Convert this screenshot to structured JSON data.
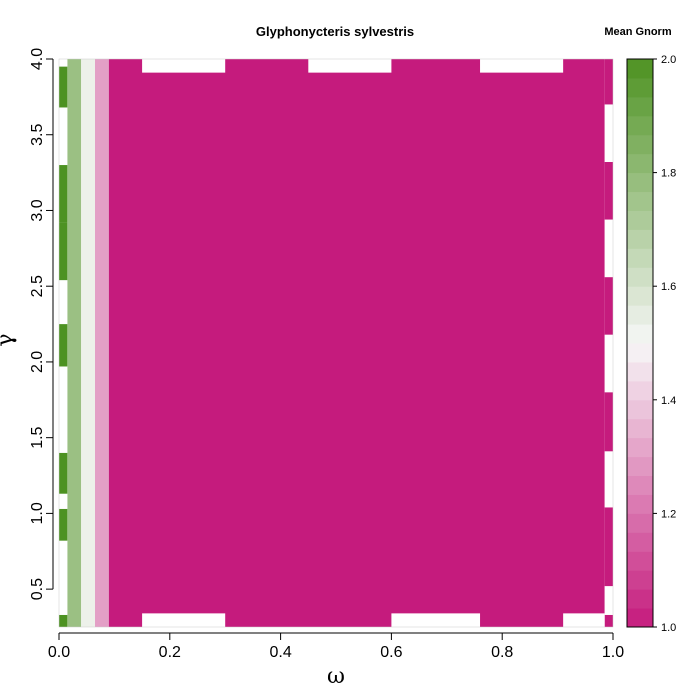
{
  "chart_data": {
    "type": "heatmap",
    "title": "Glyphonycteris sylvestris",
    "legend_title": "Mean Gnorm",
    "xlabel": "ω",
    "ylabel": "γ",
    "xlim": [
      0.0,
      1.0
    ],
    "ylim": [
      0.25,
      4.0
    ],
    "x_ticks": [
      "0.0",
      "0.2",
      "0.4",
      "0.6",
      "0.8",
      "1.0"
    ],
    "y_ticks": [
      "0.5",
      "1.0",
      "1.5",
      "2.0",
      "2.5",
      "3.0",
      "3.5",
      "4.0"
    ],
    "colorbar": {
      "range": [
        1.0,
        2.0
      ],
      "ticks": [
        "1.0",
        "1.2",
        "1.4",
        "1.6",
        "1.8",
        "2.0"
      ],
      "low_color": "#c51b7d",
      "mid_color": "#f7f7f7",
      "high_color": "#4d9221"
    },
    "columns": [
      {
        "x_from": 0.0,
        "x_to": 0.015,
        "value": null
      },
      {
        "x_from": 0.015,
        "x_to": 0.04,
        "value": 1.77
      },
      {
        "x_from": 0.04,
        "x_to": 0.065,
        "value": 1.53
      },
      {
        "x_from": 0.065,
        "x_to": 0.09,
        "value": 1.3
      },
      {
        "x_from": 0.09,
        "x_to": 0.985,
        "value": 1.0
      },
      {
        "x_from": 0.985,
        "x_to": 1.0,
        "value": null
      }
    ],
    "first_column_bands": [
      {
        "y_from": 0.25,
        "y_to": 0.33,
        "value": 2.0
      },
      {
        "y_from": 0.33,
        "y_to": 0.82,
        "value": null
      },
      {
        "y_from": 0.82,
        "y_to": 1.03,
        "value": 2.0
      },
      {
        "y_from": 1.03,
        "y_to": 1.13,
        "value": null
      },
      {
        "y_from": 1.13,
        "y_to": 1.4,
        "value": 2.0
      },
      {
        "y_from": 1.4,
        "y_to": 1.97,
        "value": null
      },
      {
        "y_from": 1.97,
        "y_to": 2.25,
        "value": 2.0
      },
      {
        "y_from": 2.25,
        "y_to": 2.54,
        "value": null
      },
      {
        "y_from": 2.54,
        "y_to": 2.92,
        "value": 2.0
      },
      {
        "y_from": 2.92,
        "y_to": 3.3,
        "value": 2.0
      },
      {
        "y_from": 3.3,
        "y_to": 3.68,
        "value": null
      },
      {
        "y_from": 3.68,
        "y_to": 3.95,
        "value": 2.0
      },
      {
        "y_from": 3.95,
        "y_to": 4.0,
        "value": null
      }
    ],
    "last_column_bands": [
      {
        "y_from": 0.25,
        "y_to": 0.33,
        "value": 1.0
      },
      {
        "y_from": 0.33,
        "y_to": 0.52,
        "value": null
      },
      {
        "y_from": 0.52,
        "y_to": 1.04,
        "value": 1.0
      },
      {
        "y_from": 1.04,
        "y_to": 1.41,
        "value": null
      },
      {
        "y_from": 1.41,
        "y_to": 1.8,
        "value": 1.0
      },
      {
        "y_from": 1.8,
        "y_to": 2.18,
        "value": null
      },
      {
        "y_from": 2.18,
        "y_to": 2.56,
        "value": 1.0
      },
      {
        "y_from": 2.56,
        "y_to": 2.94,
        "value": null
      },
      {
        "y_from": 2.94,
        "y_to": 3.32,
        "value": 1.0
      },
      {
        "y_from": 3.32,
        "y_to": 3.7,
        "value": null
      },
      {
        "y_from": 3.7,
        "y_to": 4.0,
        "value": 1.0
      }
    ],
    "missing_bottom_segments": [
      [
        0.15,
        0.3
      ],
      [
        0.6,
        0.76
      ],
      [
        0.91,
        0.985
      ]
    ],
    "missing_top_segments": [
      [
        0.15,
        0.3
      ],
      [
        0.45,
        0.6
      ],
      [
        0.76,
        0.91
      ]
    ],
    "missing_edge_band": 0.09
  },
  "colors": {
    "missing": "#ffffff",
    "axis": "#000000"
  }
}
